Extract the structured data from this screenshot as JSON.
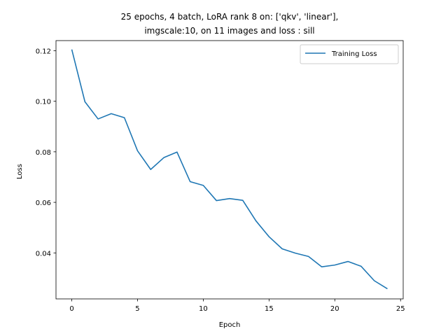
{
  "chart_data": {
    "type": "line",
    "title_lines": [
      "25 epochs, 4 batch, LoRA rank 8 on: ['qkv', 'linear'],",
      "imgscale:10, on 11 images and loss : sill"
    ],
    "xlabel": "Epoch",
    "ylabel": "Loss",
    "xlim": [
      -1.2,
      25.2
    ],
    "ylim": [
      0.0218,
      0.124
    ],
    "xticks": [
      0,
      5,
      10,
      15,
      20,
      25
    ],
    "xtick_labels": [
      "0",
      "5",
      "10",
      "15",
      "20",
      "25"
    ],
    "yticks": [
      0.04,
      0.06,
      0.08,
      0.1,
      0.12
    ],
    "ytick_labels": [
      "0.04",
      "0.06",
      "0.08",
      "0.10",
      "0.12"
    ],
    "grid": false,
    "legend_position": "top-right",
    "series": [
      {
        "name": "Training Loss",
        "color": "#1f77b4",
        "x": [
          0,
          1,
          2,
          3,
          4,
          5,
          6,
          7,
          8,
          9,
          10,
          11,
          12,
          13,
          14,
          15,
          16,
          17,
          18,
          19,
          20,
          21,
          22,
          23,
          24
        ],
        "values": [
          0.1205,
          0.0998,
          0.093,
          0.0951,
          0.0935,
          0.0804,
          0.073,
          0.0777,
          0.0799,
          0.0682,
          0.0667,
          0.0607,
          0.0615,
          0.0608,
          0.0527,
          0.0464,
          0.0416,
          0.0399,
          0.0386,
          0.0345,
          0.0352,
          0.0366,
          0.0347,
          0.029,
          0.0258
        ]
      }
    ]
  }
}
